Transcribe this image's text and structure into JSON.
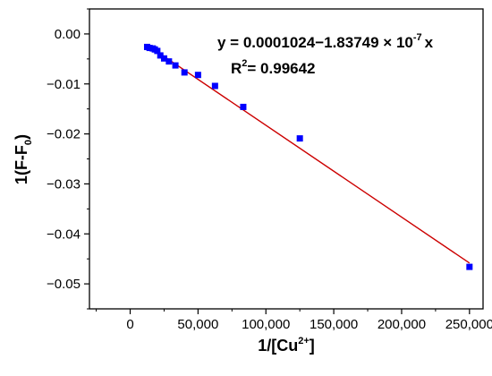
{
  "chart_data": {
    "type": "scatter",
    "title": "",
    "xlabel": {
      "prefix": "1/[Cu",
      "superscript": "2+",
      "suffix": "]"
    },
    "ylabel": {
      "prefix": "1(F-F",
      "subscript": "0",
      "suffix": ")"
    },
    "xlim": [
      -30000,
      260000
    ],
    "ylim": [
      -0.055,
      0.005
    ],
    "x_ticks": [
      0,
      50000,
      100000,
      150000,
      200000,
      250000
    ],
    "x_tick_labels": [
      "0",
      "50,000",
      "100,000",
      "150,000",
      "200,000",
      "250,000"
    ],
    "y_ticks": [
      0.0,
      -0.01,
      -0.02,
      -0.03,
      -0.04,
      -0.05
    ],
    "y_tick_labels": [
      "0.00",
      "−0.01",
      "−0.02",
      "−0.03",
      "−0.04",
      "−0.05"
    ],
    "grid": false,
    "legend": false,
    "colors": {
      "points": "#0000ff",
      "fit_line": "#cc0000",
      "axes": "#000000"
    },
    "series": [
      {
        "kind": "points",
        "x": [
          12500,
          14286,
          16667,
          18182,
          20000,
          22222,
          25000,
          28571,
          33333,
          40000,
          50000,
          62500,
          83333,
          125000,
          250000
        ],
        "y": [
          -0.0026,
          -0.0028,
          -0.0029,
          -0.0031,
          -0.0034,
          -0.0043,
          -0.0049,
          -0.0055,
          -0.0063,
          -0.0077,
          -0.0082,
          -0.0104,
          -0.0146,
          -0.0209,
          -0.0466
        ]
      }
    ],
    "fit_line": {
      "intercept": 0.0001024,
      "slope": -1.83749e-07,
      "x_range": [
        12500,
        250000
      ]
    },
    "annotation": {
      "eq_prefix": "y = 0.0001024−1.83749 × 10",
      "eq_exponent": "-7",
      "eq_suffix": "x",
      "r2_prefix": "R",
      "r2_exponent": "2",
      "r2_suffix": "= 0.99642"
    }
  }
}
